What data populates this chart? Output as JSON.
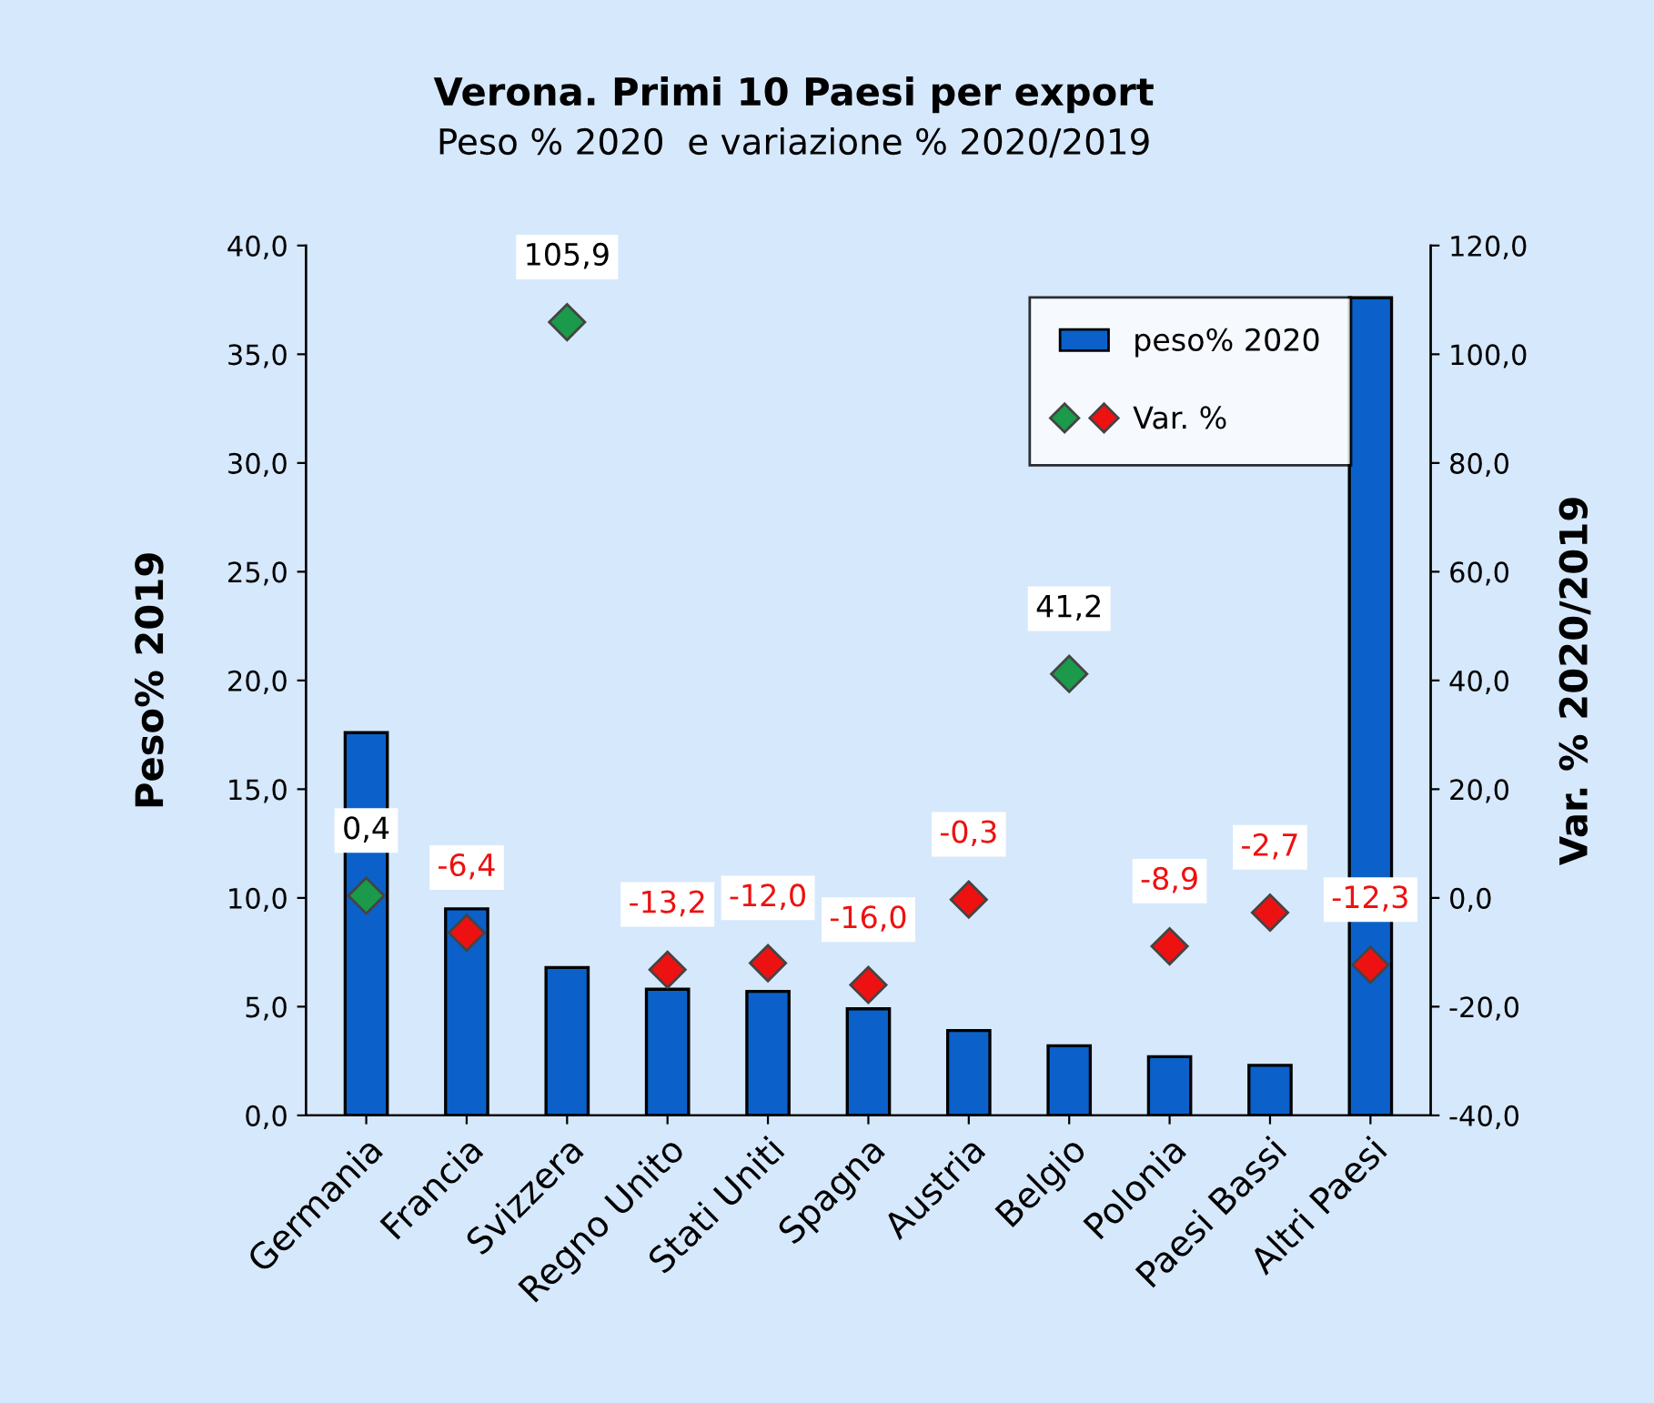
{
  "chart_data": {
    "type": "bar",
    "title": "Verona. Primi 10 Paesi per export",
    "subtitle": "Peso % 2020  e variazione % 2020/2019",
    "ylabel": "Peso% 2019",
    "y2label": "Var. % 2020/2019",
    "categories": [
      "Germania",
      "Francia",
      "Svizzera",
      "Regno Unito",
      "Stati Uniti",
      "Spagna",
      "Austria",
      "Belgio",
      "Polonia",
      "Paesi Bassi",
      "Altri Paesi"
    ],
    "series": [
      {
        "name": "peso% 2020",
        "color": "#0b61c9",
        "values": [
          17.6,
          9.5,
          6.8,
          5.8,
          5.7,
          4.9,
          3.9,
          3.2,
          2.7,
          2.3,
          37.6
        ]
      },
      {
        "name": "Var. %",
        "type": "scatter",
        "axis": "y2",
        "colors": [
          "#1a9a4a",
          "#ee1111",
          "#1a9a4a",
          "#ee1111",
          "#ee1111",
          "#ee1111",
          "#ee1111",
          "#1a9a4a",
          "#ee1111",
          "#ee1111",
          "#ee1111"
        ],
        "marker": "diamond",
        "values": [
          0.4,
          -6.4,
          105.9,
          -13.2,
          -12.0,
          -16.0,
          -0.3,
          41.2,
          -8.9,
          -2.7,
          -12.3
        ],
        "value_labels": [
          "0,4",
          "-6,4",
          "105,9",
          "-13,2",
          "-12,0",
          "-16,0",
          "-0,3",
          "41,2",
          "-8,9",
          "-2,7",
          "-12,3"
        ]
      }
    ],
    "ylim": [
      0,
      40
    ],
    "yticks": [
      {
        "value": 0,
        "label": "0,0"
      },
      {
        "value": 5,
        "label": "5,0"
      },
      {
        "value": 10,
        "label": "10,0"
      },
      {
        "value": 15,
        "label": "15,0"
      },
      {
        "value": 20,
        "label": "20,0"
      },
      {
        "value": 25,
        "label": "25,0"
      },
      {
        "value": 30,
        "label": "30,0"
      },
      {
        "value": 35,
        "label": "35,0"
      },
      {
        "value": 40,
        "label": "40,0"
      }
    ],
    "y2lim": [
      -40,
      120
    ],
    "y2ticks": [
      {
        "value": -40,
        "label": "-40,0"
      },
      {
        "value": -20,
        "label": "-20,0"
      },
      {
        "value": 0,
        "label": "0,0"
      },
      {
        "value": 20,
        "label": "20,0"
      },
      {
        "value": 40,
        "label": "40,0"
      },
      {
        "value": 60,
        "label": "60,0"
      },
      {
        "value": 80,
        "label": "80,0"
      },
      {
        "value": 100,
        "label": "100,0"
      },
      {
        "value": 120,
        "label": "120,0"
      }
    ],
    "grid": false,
    "legend": "top right"
  }
}
